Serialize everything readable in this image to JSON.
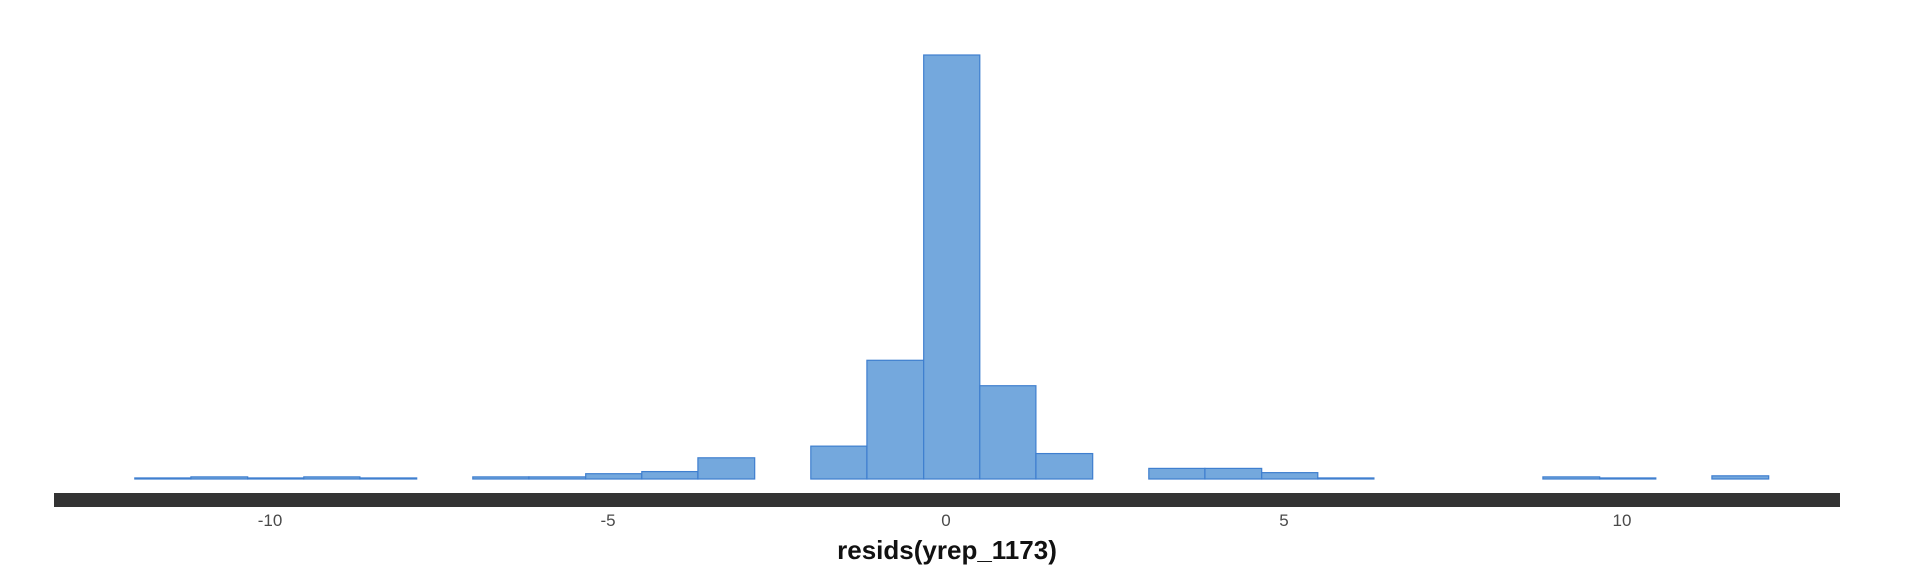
{
  "chart_data": {
    "type": "bar",
    "title": "",
    "xlabel": "resids(yrep_1173)",
    "ylabel": "",
    "xlim": [
      -13.5,
      13.5
    ],
    "bin_width": 0.8333,
    "x_ticks": [
      -10,
      -5,
      0,
      5,
      10
    ],
    "x_tick_labels": [
      "-10",
      "-5",
      "0",
      "5",
      "10"
    ],
    "grid": false,
    "legend": "none",
    "bars": [
      {
        "x0": -12.0,
        "x1": -11.17,
        "count": 1
      },
      {
        "x0": -11.17,
        "x1": -10.33,
        "count": 2
      },
      {
        "x0": -10.33,
        "x1": -9.5,
        "count": 1
      },
      {
        "x0": -9.5,
        "x1": -8.67,
        "count": 2
      },
      {
        "x0": -8.67,
        "x1": -7.83,
        "count": 1
      },
      {
        "x0": -7.83,
        "x1": -7.0,
        "count": 0
      },
      {
        "x0": -7.0,
        "x1": -6.17,
        "count": 2
      },
      {
        "x0": -6.17,
        "x1": -5.33,
        "count": 2
      },
      {
        "x0": -5.33,
        "x1": -4.5,
        "count": 5
      },
      {
        "x0": -4.5,
        "x1": -3.67,
        "count": 7
      },
      {
        "x0": -3.67,
        "x1": -2.83,
        "count": 20
      },
      {
        "x0": -2.83,
        "x1": -2.0,
        "count": 0
      },
      {
        "x0": -2.0,
        "x1": -1.17,
        "count": 31
      },
      {
        "x0": -1.17,
        "x1": -0.33,
        "count": 112
      },
      {
        "x0": -0.33,
        "x1": 0.5,
        "count": 400
      },
      {
        "x0": 0.5,
        "x1": 1.33,
        "count": 88
      },
      {
        "x0": 1.33,
        "x1": 2.17,
        "count": 24
      },
      {
        "x0": 2.17,
        "x1": 3.0,
        "count": 0
      },
      {
        "x0": 3.0,
        "x1": 3.83,
        "count": 10
      },
      {
        "x0": 3.83,
        "x1": 4.67,
        "count": 10
      },
      {
        "x0": 4.67,
        "x1": 5.5,
        "count": 6
      },
      {
        "x0": 5.5,
        "x1": 6.33,
        "count": 1
      },
      {
        "x0": 6.33,
        "x1": 7.17,
        "count": 0
      },
      {
        "x0": 7.17,
        "x1": 8.0,
        "count": 0
      },
      {
        "x0": 8.0,
        "x1": 8.83,
        "count": 0
      },
      {
        "x0": 8.83,
        "x1": 9.67,
        "count": 2
      },
      {
        "x0": 9.67,
        "x1": 10.5,
        "count": 1
      },
      {
        "x0": 10.5,
        "x1": 11.33,
        "count": 0
      },
      {
        "x0": 11.33,
        "x1": 12.17,
        "count": 3
      }
    ],
    "ylim": [
      0,
      400
    ],
    "colors": {
      "fill": "#74a8dd",
      "outline": "#3f7fcf",
      "axis_band": "#333333"
    }
  }
}
